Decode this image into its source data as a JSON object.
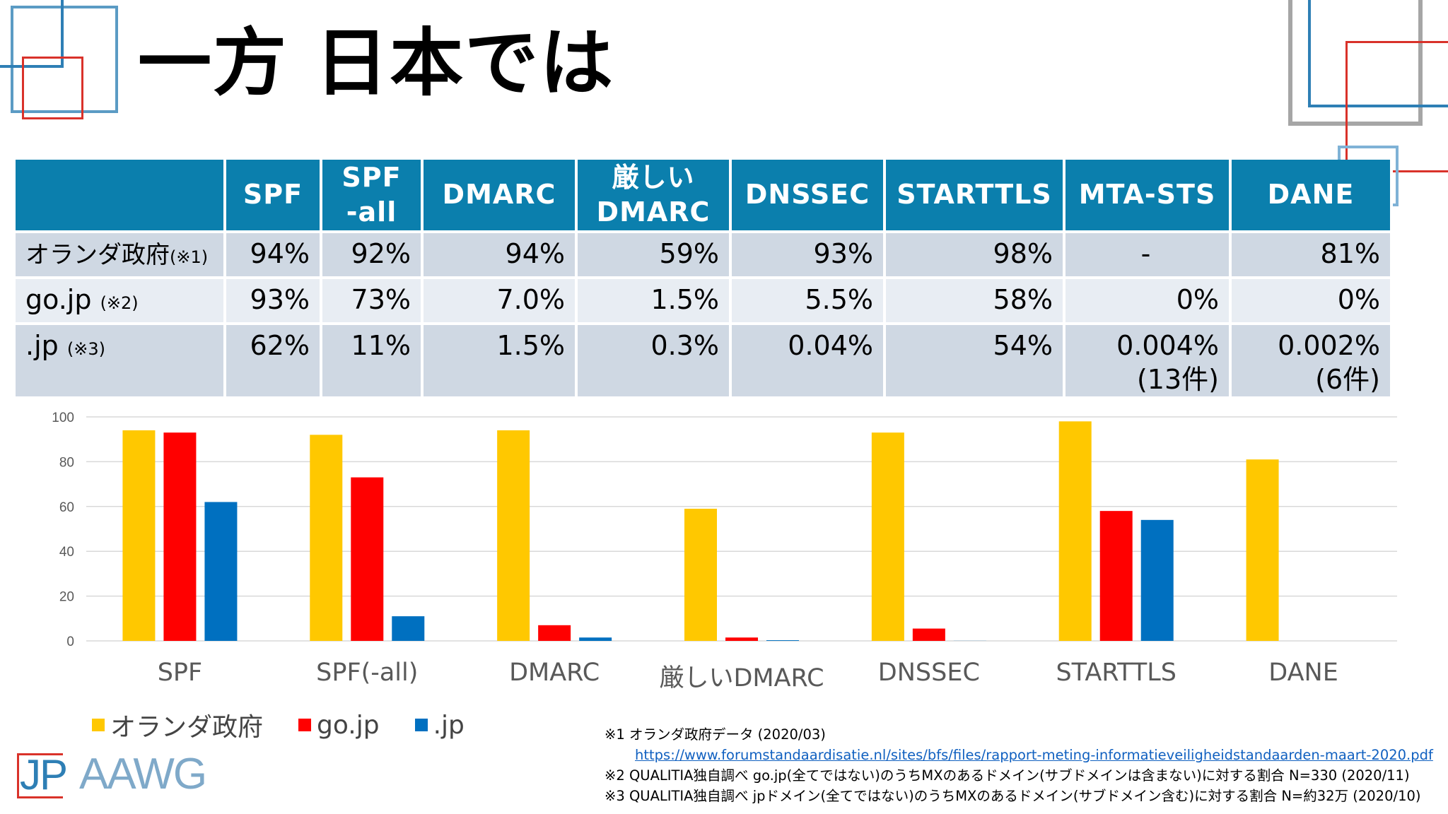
{
  "title": "一方 日本では",
  "colors": {
    "header_bg": "#0b7fad",
    "row_dark": "#cfd8e3",
    "row_light": "#e8edf3",
    "dutch": "#ffc800",
    "gojp": "#ff0000",
    "jp": "#0070c0",
    "accent_blue": "#2e7fb5",
    "accent_red": "#d9322a",
    "accent_gray": "#a6a6a6"
  },
  "table": {
    "headers": [
      "SPF",
      "SPF\n-all",
      "DMARC",
      "厳しい\nDMARC",
      "DNSSEC",
      "STARTTLS",
      "MTA-STS",
      "DANE"
    ],
    "rows": [
      {
        "label": "オランダ政府",
        "note": "(※1)",
        "values": [
          "94%",
          "92%",
          "94%",
          "59%",
          "93%",
          "98%",
          "-",
          "81%"
        ]
      },
      {
        "label": "go.jp",
        "note": "(※2)",
        "values": [
          "93%",
          "73%",
          "7.0%",
          "1.5%",
          "5.5%",
          "58%",
          "0%",
          "0%"
        ]
      },
      {
        "label": ".jp",
        "note": "(※3)",
        "values": [
          "62%",
          "11%",
          "1.5%",
          "0.3%",
          "0.04%",
          "54%",
          "0.004%\n(13件)",
          "0.002%\n(6件)"
        ]
      }
    ]
  },
  "chart_data": {
    "type": "bar",
    "categories": [
      "SPF",
      "SPF(-all)",
      "DMARC",
      "厳しいDMARC",
      "DNSSEC",
      "STARTTLS",
      "DANE"
    ],
    "series": [
      {
        "name": "オランダ政府",
        "values": [
          94,
          92,
          94,
          59,
          93,
          98,
          81
        ]
      },
      {
        "name": "go.jp",
        "values": [
          93,
          73,
          7,
          1.5,
          5.5,
          58,
          0
        ]
      },
      {
        "name": ".jp",
        "values": [
          62,
          11,
          1.5,
          0.3,
          0.04,
          54,
          0.002
        ]
      }
    ],
    "yticks": [
      "0",
      "20",
      "40",
      "60",
      "80",
      "100"
    ],
    "ylim": [
      0,
      100
    ],
    "grid": true,
    "legend": "bottom-left"
  },
  "footnotes": [
    "※1 オランダ政府データ (2020/03)",
    "https://www.forumstandaardisatie.nl/sites/bfs/files/rapport-meting-informatieveiligheidstandaarden-maart-2020.pdf",
    "※2 QUALITIA独自調べ go.jp(全てではない)のうちMXのあるドメイン(サブドメインは含まない)に対する割合 N=330 (2020/11)",
    "※3 QUALITIA独自調べ jpドメイン(全てではない)のうちMXのあるドメイン(サブドメイン含む)に対する割合 N=約32万 (2020/10)"
  ],
  "logo": {
    "jp": "JP",
    "aawg": "AAWG"
  }
}
